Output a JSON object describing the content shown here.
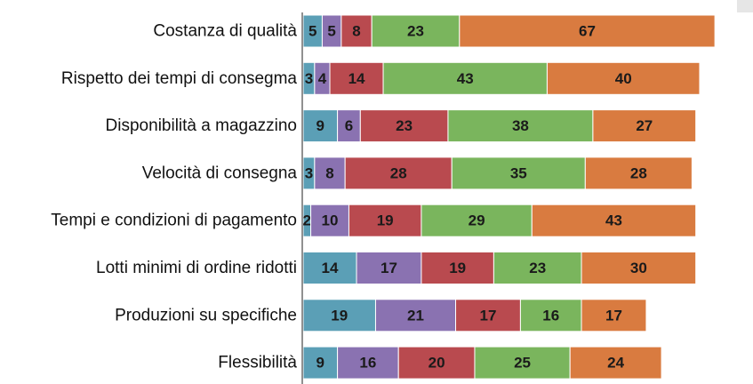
{
  "chart_data": {
    "type": "stacked-bar",
    "orientation": "horizontal",
    "categories": [
      "Costanza di qualità",
      "Rispetto dei tempi di consegma",
      "Disponibilità a magazzino",
      "Velocità di consegna",
      "Tempi e condizioni di pagamento",
      "Lotti minimi di ordine ridotti",
      "Produzioni su specifiche",
      "Flessibilità"
    ],
    "series": [
      {
        "color": "#5b9fb6",
        "values": [
          5,
          3,
          9,
          3,
          2,
          14,
          19,
          9
        ]
      },
      {
        "color": "#8a72b1",
        "values": [
          5,
          4,
          6,
          8,
          10,
          17,
          21,
          16
        ]
      },
      {
        "color": "#b94a4f",
        "values": [
          8,
          14,
          23,
          28,
          19,
          19,
          17,
          20
        ]
      },
      {
        "color": "#7ab55d",
        "values": [
          23,
          43,
          38,
          35,
          29,
          23,
          16,
          25
        ]
      },
      {
        "color": "#d97b40",
        "values": [
          67,
          40,
          27,
          28,
          43,
          30,
          17,
          24
        ]
      }
    ],
    "xlim": [
      0,
      118
    ]
  }
}
